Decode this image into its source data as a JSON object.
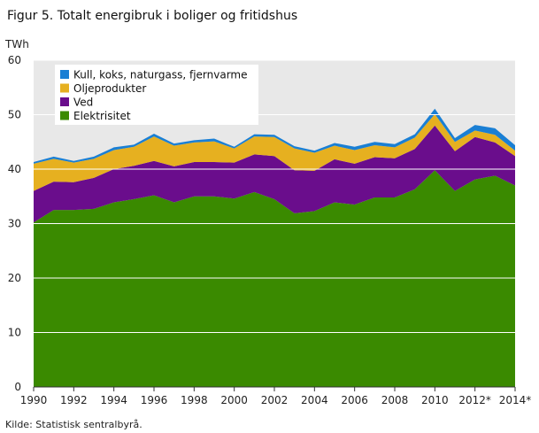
{
  "chart_data": {
    "type": "area",
    "stacked": true,
    "title": "Figur 5. Totalt energibruk i boliger og fritidshus",
    "ylabel": "TWh",
    "xlabel": "",
    "source": "Kilde: Statistisk sentralbyrå.",
    "ylim": [
      0,
      60
    ],
    "yticks": [
      "0",
      "10",
      "20",
      "30",
      "40",
      "50",
      "60"
    ],
    "xlim": [
      1990,
      2014
    ],
    "xtick_values": [
      1990,
      1992,
      1994,
      1996,
      1998,
      2000,
      2002,
      2004,
      2006,
      2008,
      2010,
      2012,
      2014
    ],
    "xtick_labels": [
      "1990",
      "1992",
      "1994",
      "1996",
      "1998",
      "2000",
      "2002",
      "2004",
      "2006",
      "2008",
      "2010",
      "2012*",
      "2014*"
    ],
    "grid": true,
    "legend_position": "top-left",
    "plot_background": "#e8e8e8",
    "x": [
      1990,
      1991,
      1992,
      1993,
      1994,
      1995,
      1996,
      1997,
      1998,
      1999,
      2000,
      2001,
      2002,
      2003,
      2004,
      2005,
      2006,
      2007,
      2008,
      2009,
      2010,
      2011,
      2012,
      2013,
      2014
    ],
    "series": [
      {
        "name": "Elektrisitet",
        "color": "#3a8a00",
        "values": [
          30.2,
          32.5,
          32.5,
          32.7,
          33.9,
          34.5,
          35.2,
          33.9,
          35.0,
          35.0,
          34.6,
          35.8,
          34.5,
          31.9,
          32.3,
          33.9,
          33.5,
          34.8,
          34.8,
          36.3,
          39.8,
          36.0,
          38.1,
          38.8,
          37.0
        ]
      },
      {
        "name": "Ved",
        "color": "#6a0d8c",
        "values": [
          5.8,
          5.2,
          5.1,
          5.7,
          6.1,
          6.1,
          6.3,
          6.6,
          6.3,
          6.3,
          6.6,
          6.9,
          7.9,
          7.9,
          7.4,
          7.9,
          7.5,
          7.4,
          7.2,
          7.4,
          8.2,
          7.3,
          7.8,
          6.1,
          5.4
        ]
      },
      {
        "name": "Oljeprodukter",
        "color": "#e6b020",
        "values": [
          5.0,
          4.2,
          3.6,
          3.5,
          3.5,
          3.5,
          4.5,
          3.8,
          3.6,
          3.8,
          2.6,
          3.3,
          3.5,
          4.0,
          3.3,
          2.5,
          2.5,
          2.2,
          2.0,
          2.1,
          2.1,
          1.7,
          1.2,
          1.4,
          1.0
        ]
      },
      {
        "name": "Kull, koks, naturgass, fjernvarme",
        "color": "#1a7fd4",
        "values": [
          0.3,
          0.4,
          0.3,
          0.4,
          0.5,
          0.4,
          0.5,
          0.4,
          0.4,
          0.5,
          0.3,
          0.4,
          0.4,
          0.4,
          0.4,
          0.5,
          0.6,
          0.6,
          0.6,
          0.6,
          1.0,
          0.7,
          1.0,
          1.2,
          1.0
        ]
      }
    ]
  }
}
